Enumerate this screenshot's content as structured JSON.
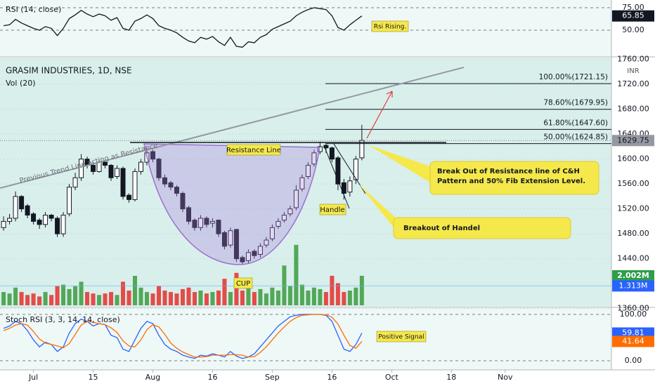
{
  "chart_data": [
    {
      "type": "candlestick",
      "title": "GRASIM INDUSTRIES, 1D, NSE",
      "currency": "INR",
      "annotations": [
        "Resistance Line",
        "Previous Trend Line acting as Resistance",
        "Handle",
        "CUP",
        "Break Out of Resistance line of C&H Pattern and 50% Fib Extension Level.",
        "Breakout of Handel"
      ],
      "open": [
        1490,
        1500,
        1505,
        1540,
        1525,
        1512,
        1502,
        1495,
        1510,
        1505,
        1480,
        1512,
        1555,
        1570,
        1600,
        1590,
        1580,
        1595,
        1590,
        1572,
        1585,
        1542,
        1535,
        1580,
        1595,
        1612,
        1600,
        1570,
        1562,
        1555,
        1545,
        1522,
        1502,
        1490,
        1505,
        1497,
        1502,
        1482,
        1462,
        1487,
        1442,
        1437,
        1452,
        1447,
        1462,
        1472,
        1492,
        1502,
        1512,
        1522,
        1552,
        1572,
        1592,
        1612,
        1622,
        1618,
        1602,
        1562,
        1547,
        1567,
        1602
      ],
      "high": [
        1508,
        1512,
        1548,
        1542,
        1528,
        1515,
        1505,
        1515,
        1512,
        1508,
        1515,
        1560,
        1578,
        1608,
        1604,
        1595,
        1600,
        1598,
        1592,
        1590,
        1588,
        1545,
        1585,
        1600,
        1618,
        1615,
        1602,
        1575,
        1565,
        1558,
        1548,
        1525,
        1505,
        1510,
        1508,
        1505,
        1503,
        1485,
        1490,
        1488,
        1445,
        1455,
        1455,
        1465,
        1475,
        1495,
        1505,
        1515,
        1525,
        1558,
        1575,
        1595,
        1615,
        1628,
        1625,
        1620,
        1605,
        1568,
        1572,
        1605,
        1655
      ],
      "low": [
        1485,
        1495,
        1500,
        1515,
        1505,
        1495,
        1488,
        1490,
        1500,
        1475,
        1475,
        1508,
        1550,
        1565,
        1585,
        1575,
        1578,
        1585,
        1565,
        1568,
        1535,
        1530,
        1532,
        1575,
        1590,
        1595,
        1565,
        1555,
        1550,
        1540,
        1515,
        1495,
        1485,
        1485,
        1490,
        1490,
        1475,
        1455,
        1458,
        1435,
        1430,
        1432,
        1440,
        1442,
        1458,
        1468,
        1488,
        1498,
        1508,
        1518,
        1548,
        1568,
        1588,
        1608,
        1610,
        1595,
        1550,
        1535,
        1540,
        1560,
        1598
      ],
      "close": [
        1500,
        1505,
        1540,
        1520,
        1510,
        1500,
        1495,
        1510,
        1505,
        1480,
        1510,
        1555,
        1570,
        1600,
        1590,
        1580,
        1595,
        1590,
        1570,
        1585,
        1540,
        1535,
        1580,
        1595,
        1610,
        1600,
        1570,
        1560,
        1555,
        1545,
        1520,
        1500,
        1490,
        1505,
        1495,
        1500,
        1480,
        1460,
        1485,
        1440,
        1435,
        1450,
        1445,
        1460,
        1470,
        1490,
        1500,
        1510,
        1520,
        1550,
        1570,
        1590,
        1610,
        1620,
        1618,
        1600,
        1560,
        1545,
        1565,
        1600,
        1630
      ],
      "last_price": 1629.75,
      "fib_levels": [
        {
          "value": 1721.15,
          "label": "100.00%(1721.15)"
        },
        {
          "value": 1679.95,
          "label": "78.60%(1679.95)"
        },
        {
          "value": 1647.6,
          "label": "61.80%(1647.60)"
        },
        {
          "value": 1624.85,
          "label": "50.00%(1624.85)"
        }
      ],
      "xlim": [
        -0.6,
        101.8
      ],
      "xticks": [
        {
          "value": 5,
          "label": "Jul"
        },
        {
          "value": 15,
          "label": "15"
        },
        {
          "value": 25,
          "label": "Aug"
        },
        {
          "value": 35,
          "label": "16"
        },
        {
          "value": 45,
          "label": "Sep"
        },
        {
          "value": 55,
          "label": "16"
        },
        {
          "value": 65,
          "label": "Oct"
        },
        {
          "value": 75,
          "label": "18"
        },
        {
          "value": 84,
          "label": "Nov"
        }
      ],
      "ylim": [
        1363,
        1763
      ],
      "yticks": [
        {
          "value": 1360,
          "label": "1360.00"
        },
        {
          "value": 1440,
          "label": "1440.00"
        },
        {
          "value": 1480,
          "label": "1480.00"
        },
        {
          "value": 1520,
          "label": "1520.00"
        },
        {
          "value": 1560,
          "label": "1560.00"
        },
        {
          "value": 1600,
          "label": "1600.00"
        },
        {
          "value": 1640,
          "label": "1640.00"
        },
        {
          "value": 1680,
          "label": "1680.00"
        },
        {
          "value": 1720,
          "label": "1720.00"
        },
        {
          "value": 1760,
          "label": "1760.00"
        }
      ]
    },
    {
      "type": "bar",
      "title": "Vol (20)",
      "values": [
        0.9,
        0.8,
        1.2,
        0.9,
        0.7,
        0.8,
        0.6,
        0.9,
        0.7,
        1.3,
        1.4,
        1.1,
        1.3,
        1.6,
        0.9,
        0.8,
        0.7,
        0.8,
        0.9,
        0.7,
        1.6,
        1.0,
        2.0,
        1.2,
        0.9,
        0.8,
        1.3,
        1.0,
        0.9,
        0.8,
        1.1,
        1.2,
        0.9,
        1.0,
        0.8,
        0.9,
        1.0,
        1.8,
        0.9,
        2.2,
        1.0,
        1.3,
        0.9,
        1.1,
        0.8,
        1.2,
        1.0,
        2.7,
        1.3,
        4.1,
        1.4,
        1.0,
        1.2,
        1.1,
        0.9,
        2.0,
        1.5,
        0.9,
        1.0,
        1.2,
        2.002
      ],
      "last_label": "2.002M",
      "ma": {
        "value": 1.313,
        "label": "1.313M"
      },
      "ylim": [
        0,
        12
      ]
    },
    {
      "type": "line",
      "title": "RSI (14, close)",
      "note": "Rsi Rising.",
      "color": "#131722",
      "values": [
        55,
        56,
        62,
        58,
        55,
        52,
        50,
        54,
        52,
        44,
        52,
        63,
        67,
        72,
        68,
        65,
        68,
        66,
        61,
        64,
        52,
        50,
        60,
        63,
        67,
        63,
        55,
        52,
        50,
        47,
        42,
        38,
        36,
        42,
        40,
        43,
        37,
        33,
        42,
        32,
        31,
        37,
        36,
        42,
        45,
        51,
        54,
        57,
        60,
        66,
        70,
        73,
        75,
        74,
        73,
        66,
        53,
        50,
        56,
        61,
        65.85
      ],
      "ylim": [
        21.1,
        83.6
      ],
      "yticks": [
        {
          "value": 75,
          "label": "75.00"
        },
        {
          "value": 50,
          "label": "50.00"
        }
      ]
    },
    {
      "type": "line",
      "title": "Stoch RSI (3, 3, 14, 14, close)",
      "note": "Positive Signal",
      "series": [
        {
          "color": "#2962ff",
          "values": [
            70,
            75,
            85,
            80,
            65,
            45,
            30,
            40,
            35,
            20,
            30,
            60,
            80,
            90,
            85,
            75,
            80,
            78,
            55,
            50,
            25,
            20,
            45,
            70,
            85,
            80,
            55,
            35,
            25,
            20,
            12,
            8,
            5,
            12,
            10,
            15,
            12,
            8,
            20,
            10,
            5,
            8,
            15,
            30,
            45,
            60,
            75,
            85,
            95,
            98,
            100,
            100,
            100,
            100,
            98,
            85,
            55,
            25,
            20,
            35,
            59.81
          ]
        },
        {
          "color": "#ff6d00",
          "values": [
            65,
            70,
            77,
            80,
            77,
            63,
            47,
            38,
            35,
            32,
            28,
            37,
            57,
            77,
            85,
            83,
            80,
            78,
            71,
            61,
            43,
            32,
            30,
            45,
            67,
            78,
            73,
            57,
            38,
            27,
            19,
            13,
            8,
            8,
            9,
            12,
            12,
            12,
            13,
            13,
            12,
            8,
            9,
            18,
            30,
            45,
            60,
            73,
            85,
            93,
            98,
            99,
            100,
            100,
            99,
            94,
            79,
            55,
            33,
            27,
            41.64
          ]
        }
      ],
      "ylim": [
        -19.7,
        113.6
      ],
      "yticks": [
        {
          "value": 100,
          "label": "100.00"
        },
        {
          "value": 0,
          "label": "0.00"
        }
      ]
    }
  ]
}
